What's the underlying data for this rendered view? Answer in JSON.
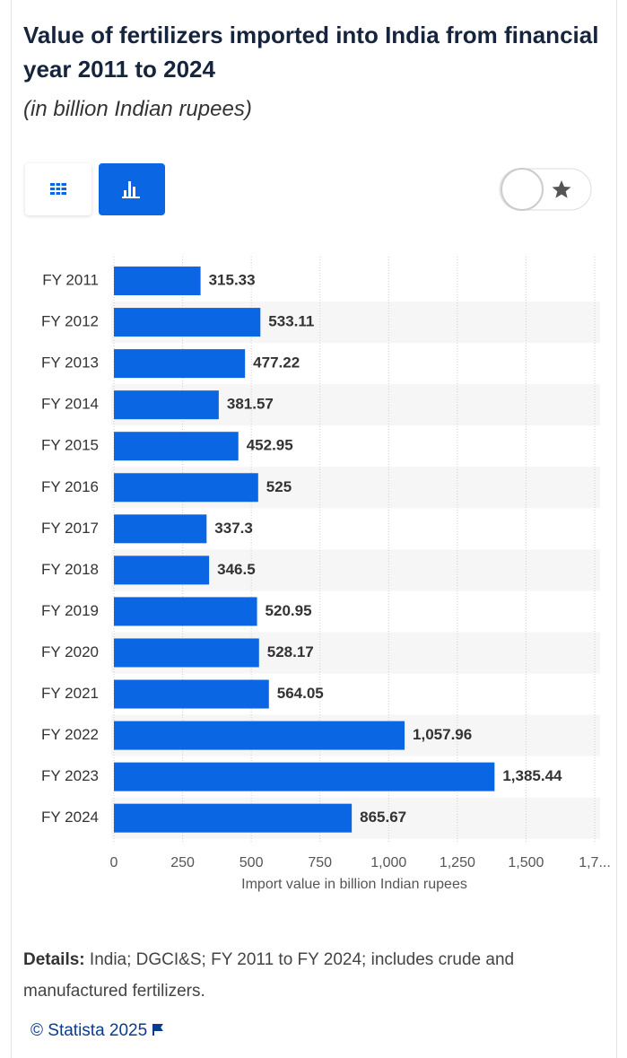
{
  "chart_data": {
    "type": "bar",
    "orientation": "horizontal",
    "title": "Value of fertilizers imported into India from financial year 2011 to 2024",
    "subtitle": "(in billion Indian rupees)",
    "x_label": "Import value in billion Indian rupees",
    "categories": [
      "FY 2011",
      "FY 2012",
      "FY 2013",
      "FY 2014",
      "FY 2015",
      "FY 2016",
      "FY 2017",
      "FY 2018",
      "FY 2019",
      "FY 2020",
      "FY 2021",
      "FY 2022",
      "FY 2023",
      "FY 2024"
    ],
    "values": [
      315.33,
      533.11,
      477.22,
      381.57,
      452.95,
      525,
      337.3,
      346.5,
      520.95,
      528.17,
      564.05,
      1057.96,
      1385.44,
      865.67
    ],
    "value_labels": [
      "315.33",
      "533.11",
      "477.22",
      "381.57",
      "452.95",
      "525",
      "337.3",
      "346.5",
      "520.95",
      "528.17",
      "564.05",
      "1,057.96",
      "1,385.44",
      "865.67"
    ],
    "color": "#0b66e4",
    "xlim": [
      0,
      1750
    ],
    "xticks": [
      0,
      250,
      500,
      750,
      {
        "value": 1000,
        "label": "1,000"
      },
      {
        "value": 1250,
        "label": "1,250"
      },
      {
        "value": 1500,
        "label": "1,500"
      },
      {
        "value": 1750,
        "label": "1,7..."
      }
    ],
    "grid": true
  },
  "details": {
    "label": "Details:",
    "text": "India; DGCI&S; FY 2011 to FY 2024; includes crude and manufactured fertilizers."
  },
  "source": "© Statista 2025"
}
